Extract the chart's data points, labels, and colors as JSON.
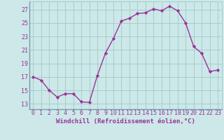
{
  "x": [
    0,
    1,
    2,
    3,
    4,
    5,
    6,
    7,
    8,
    9,
    10,
    11,
    12,
    13,
    14,
    15,
    16,
    17,
    18,
    19,
    20,
    21,
    22,
    23
  ],
  "y": [
    17.0,
    16.5,
    15.0,
    14.0,
    14.5,
    14.5,
    13.3,
    13.2,
    17.2,
    20.5,
    22.7,
    25.3,
    25.7,
    26.4,
    26.5,
    27.1,
    26.8,
    27.5,
    26.8,
    25.0,
    21.5,
    20.5,
    17.8,
    18.0
  ],
  "line_color": "#993399",
  "marker": "D",
  "marker_size": 2.2,
  "bg_color": "#cce8e8",
  "grid_color": "#aacccc",
  "ylabel_ticks": [
    13,
    15,
    17,
    19,
    21,
    23,
    25,
    27
  ],
  "xlabel": "Windchill (Refroidissement éolien,°C)",
  "xlim": [
    -0.5,
    23.5
  ],
  "ylim": [
    12.2,
    28.2
  ],
  "tick_color": "#993399",
  "xlabel_fontsize": 6.5,
  "tick_fontsize": 6.0,
  "linewidth": 1.0
}
